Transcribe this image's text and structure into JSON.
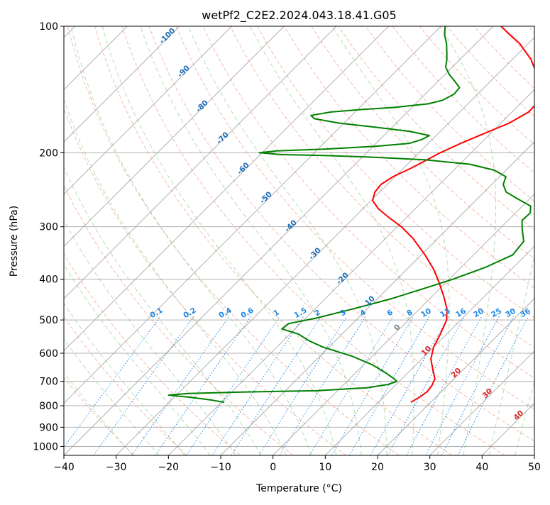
{
  "chart_data": {
    "type": "skew-t",
    "title": "wetPf2_C2E2.2024.043.18.41.G05",
    "xlabel": "Temperature (°C)",
    "ylabel": "Pressure (hPa)",
    "xlim": [
      -40,
      50
    ],
    "ylim_hpa": [
      1050,
      100
    ],
    "x_ticks": [
      -40,
      -30,
      -20,
      -10,
      0,
      10,
      20,
      30,
      40,
      50
    ],
    "y_ticks": [
      100,
      200,
      300,
      400,
      500,
      600,
      700,
      800,
      900,
      1000
    ],
    "grid": true,
    "series": [
      {
        "kind": "temperature",
        "color": "#ff0000",
        "points": [
          [
            785,
            16.2
          ],
          [
            760,
            17.0
          ],
          [
            740,
            17.3
          ],
          [
            715,
            17.0
          ],
          [
            690,
            16.3
          ],
          [
            660,
            14.4
          ],
          [
            620,
            11.8
          ],
          [
            580,
            10.0
          ],
          [
            540,
            8.8
          ],
          [
            500,
            7.3
          ],
          [
            470,
            5.2
          ],
          [
            440,
            2.3
          ],
          [
            410,
            -1.0
          ],
          [
            380,
            -4.7
          ],
          [
            350,
            -9.3
          ],
          [
            320,
            -14.7
          ],
          [
            300,
            -19.2
          ],
          [
            285,
            -23.4
          ],
          [
            272,
            -27.0
          ],
          [
            260,
            -29.7
          ],
          [
            248,
            -30.9
          ],
          [
            238,
            -31.2
          ],
          [
            228,
            -30.4
          ],
          [
            218,
            -28.6
          ],
          [
            208,
            -27.1
          ],
          [
            200,
            -25.9
          ],
          [
            190,
            -23.8
          ],
          [
            180,
            -21.2
          ],
          [
            170,
            -18.4
          ],
          [
            160,
            -16.8
          ],
          [
            150,
            -17.0
          ],
          [
            140,
            -19.0
          ],
          [
            130,
            -22.5
          ],
          [
            120,
            -26.4
          ],
          [
            110,
            -31.6
          ],
          [
            103,
            -36.4
          ],
          [
            100,
            -38.5
          ]
        ]
      },
      {
        "kind": "dewpoint",
        "color": "#008000",
        "points": [
          [
            785,
            -19.5
          ],
          [
            775,
            -22.5
          ],
          [
            765,
            -26.5
          ],
          [
            755,
            -31.5
          ],
          [
            748,
            -28.0
          ],
          [
            742,
            -18.0
          ],
          [
            737,
            -4.0
          ],
          [
            725,
            5.0
          ],
          [
            712,
            8.5
          ],
          [
            700,
            9.5
          ],
          [
            690,
            8.5
          ],
          [
            670,
            6.0
          ],
          [
            640,
            1.8
          ],
          [
            610,
            -3.8
          ],
          [
            580,
            -11.2
          ],
          [
            560,
            -15.1
          ],
          [
            540,
            -18.4
          ],
          [
            525,
            -22.5
          ],
          [
            510,
            -22.2
          ],
          [
            495,
            -18.0
          ],
          [
            470,
            -12.6
          ],
          [
            445,
            -7.3
          ],
          [
            420,
            -2.9
          ],
          [
            400,
            0.7
          ],
          [
            375,
            4.6
          ],
          [
            350,
            7.5
          ],
          [
            325,
            7.0
          ],
          [
            305,
            4.5
          ],
          [
            290,
            2.7
          ],
          [
            278,
            2.8
          ],
          [
            268,
            1.6
          ],
          [
            258,
            -2.1
          ],
          [
            248,
            -5.8
          ],
          [
            238,
            -7.8
          ],
          [
            228,
            -8.8
          ],
          [
            220,
            -12.3
          ],
          [
            213,
            -18.1
          ],
          [
            208,
            -27.3
          ],
          [
            205,
            -37.6
          ],
          [
            203,
            -47.7
          ],
          [
            202,
            -56.2
          ],
          [
            200,
            -60.5
          ],
          [
            198,
            -57.6
          ],
          [
            196,
            -48.4
          ],
          [
            193,
            -39.5
          ],
          [
            190,
            -33.6
          ],
          [
            186,
            -32.0
          ],
          [
            182,
            -31.3
          ],
          [
            178,
            -35.7
          ],
          [
            174,
            -43.0
          ],
          [
            170,
            -51.0
          ],
          [
            166,
            -56.5
          ],
          [
            163,
            -57.8
          ],
          [
            160,
            -54.6
          ],
          [
            158,
            -49.8
          ],
          [
            156,
            -43.3
          ],
          [
            153,
            -37.6
          ],
          [
            150,
            -35.5
          ],
          [
            145,
            -34.5
          ],
          [
            140,
            -34.7
          ],
          [
            135,
            -36.9
          ],
          [
            130,
            -39.3
          ],
          [
            125,
            -41.3
          ],
          [
            120,
            -42.5
          ],
          [
            115,
            -44.0
          ],
          [
            110,
            -45.6
          ],
          [
            105,
            -47.6
          ],
          [
            100,
            -49.2
          ]
        ]
      }
    ],
    "dry_adiabat_labels": [
      "-100",
      "-90",
      "-80",
      "-70",
      "-60",
      "-50",
      "-40",
      "-30",
      "-20",
      "-10"
    ],
    "moist_adiabat_labels": [
      "0",
      "10",
      "20",
      "30",
      "40"
    ],
    "mixing_ratio_labels": [
      "0.1",
      "0.2",
      "0.4",
      "0.6",
      "1",
      "1.5",
      "2",
      "3",
      "4",
      "6",
      "8",
      "10",
      "13",
      "16",
      "20",
      "25",
      "30",
      "36"
    ]
  }
}
